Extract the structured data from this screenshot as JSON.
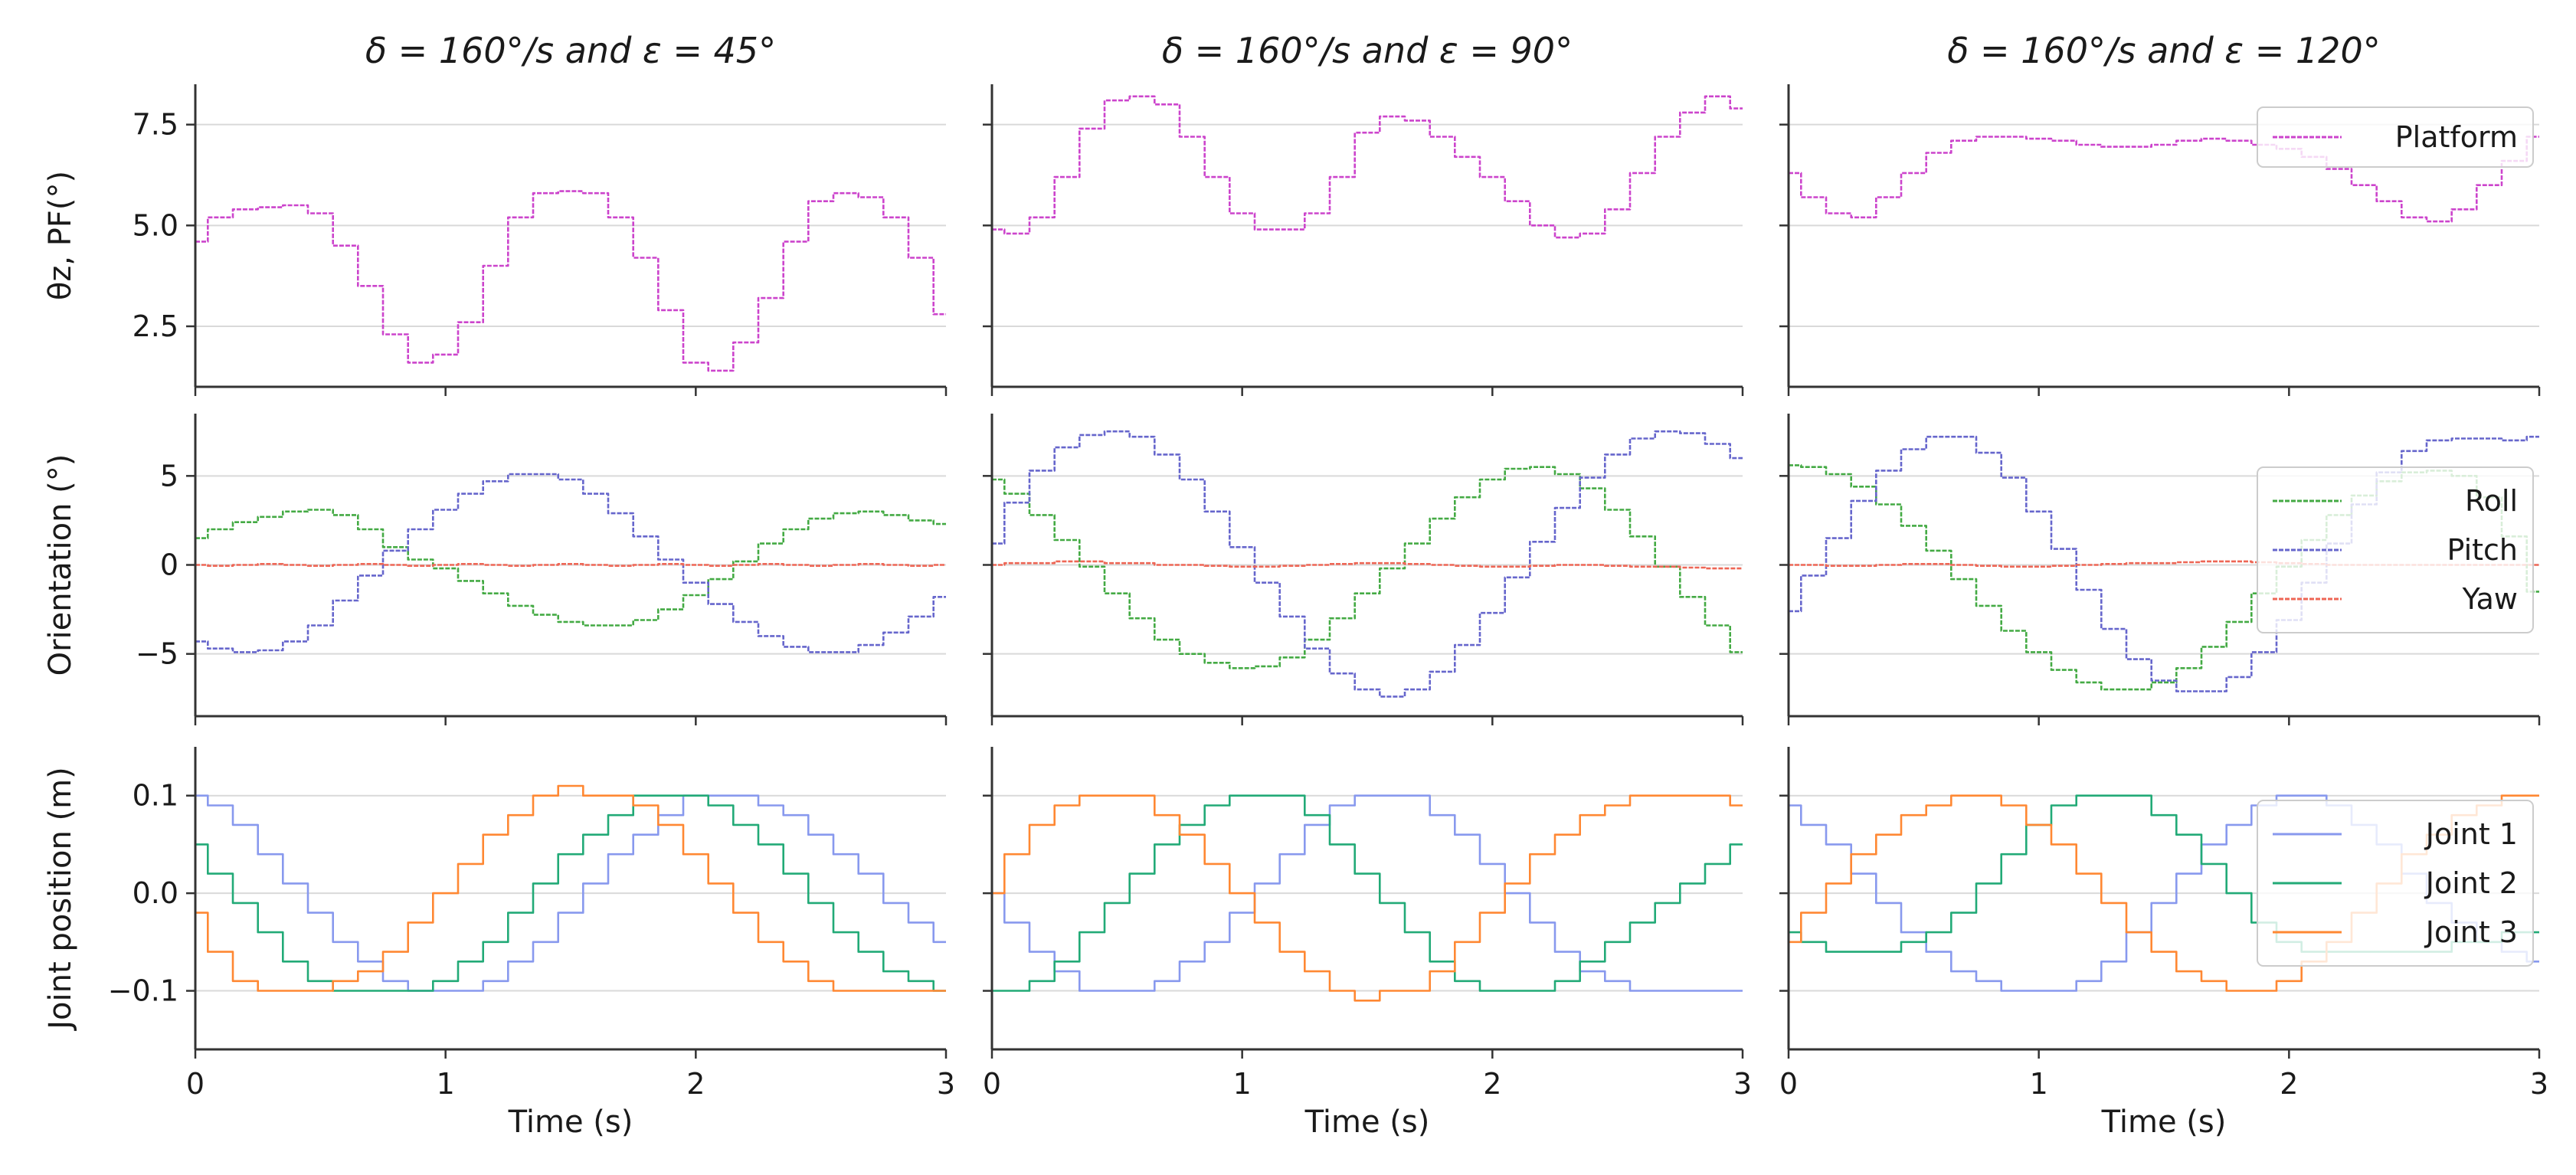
{
  "chart_data": {
    "type": "line",
    "layout": "3 rows x 3 columns of line plots sharing the time axis",
    "x": [
      0,
      0.1,
      0.2,
      0.3,
      0.4,
      0.5,
      0.6,
      0.7,
      0.8,
      0.9,
      1.0,
      1.1,
      1.2,
      1.3,
      1.4,
      1.5,
      1.6,
      1.7,
      1.8,
      1.9,
      2.0,
      2.1,
      2.2,
      2.3,
      2.4,
      2.5,
      2.6,
      2.7,
      2.8,
      2.9,
      3.0
    ],
    "xlabel": "Time (s)",
    "xlim": [
      0,
      3
    ],
    "xticks": [
      0,
      1,
      2,
      3
    ],
    "column_titles": [
      "δ = 160°/s and ε = 45°",
      "δ = 160°/s and ε = 90°",
      "δ = 160°/s and ε = 120°"
    ],
    "rows": [
      {
        "name": "platform",
        "ylabel": "θz, PF(°)",
        "ylim": [
          1.0,
          8.5
        ],
        "yticks": [
          2.5,
          5.0,
          7.5
        ],
        "ytick_labels": [
          "2.5",
          "5.0",
          "7.5"
        ],
        "legend": [
          "Platform"
        ],
        "legend_position": "top-right",
        "series_by_column": [
          [
            {
              "name": "Platform",
              "color": "#cc44cc",
              "values": [
                4.6,
                5.2,
                5.4,
                5.45,
                5.5,
                5.3,
                4.5,
                3.5,
                2.3,
                1.6,
                1.8,
                2.6,
                4.0,
                5.2,
                5.8,
                5.85,
                5.8,
                5.2,
                4.2,
                2.9,
                1.6,
                1.4,
                2.1,
                3.2,
                4.6,
                5.6,
                5.8,
                5.7,
                5.2,
                4.2,
                2.8
              ]
            }
          ],
          [
            {
              "name": "Platform",
              "color": "#cc44cc",
              "values": [
                4.9,
                4.8,
                5.2,
                6.2,
                7.4,
                8.1,
                8.2,
                8.0,
                7.2,
                6.2,
                5.3,
                4.9,
                4.9,
                5.3,
                6.2,
                7.3,
                7.7,
                7.6,
                7.2,
                6.7,
                6.2,
                5.6,
                5.0,
                4.7,
                4.8,
                5.4,
                6.3,
                7.2,
                7.8,
                8.2,
                7.9
              ]
            }
          ],
          [
            {
              "name": "Platform",
              "color": "#cc44cc",
              "values": [
                6.3,
                5.7,
                5.3,
                5.2,
                5.7,
                6.3,
                6.8,
                7.1,
                7.2,
                7.2,
                7.15,
                7.1,
                7.0,
                6.95,
                6.95,
                7.0,
                7.1,
                7.15,
                7.1,
                7.0,
                6.9,
                6.7,
                6.4,
                6.0,
                5.6,
                5.2,
                5.1,
                5.4,
                6.0,
                6.6,
                7.2
              ]
            }
          ]
        ]
      },
      {
        "name": "orientation",
        "ylabel": "Orientation (°)",
        "ylim": [
          -8.5,
          8.5
        ],
        "yticks": [
          -5,
          0,
          5
        ],
        "ytick_labels": [
          "−5",
          "0",
          "5"
        ],
        "legend": [
          "Roll",
          "Pitch",
          "Yaw"
        ],
        "legend_position": "right",
        "series_by_column": [
          [
            {
              "name": "Roll",
              "color": "#44aa44",
              "values": [
                1.5,
                2.0,
                2.4,
                2.7,
                3.0,
                3.1,
                2.8,
                2.0,
                1.0,
                0.3,
                -0.2,
                -0.9,
                -1.6,
                -2.3,
                -2.8,
                -3.2,
                -3.4,
                -3.4,
                -3.1,
                -2.5,
                -1.7,
                -0.8,
                0.2,
                1.2,
                2.0,
                2.6,
                2.9,
                3.0,
                2.8,
                2.5,
                2.3
              ]
            },
            {
              "name": "Pitch",
              "color": "#6666cc",
              "values": [
                -4.3,
                -4.7,
                -4.9,
                -4.8,
                -4.3,
                -3.4,
                -2.0,
                -0.6,
                0.8,
                2.0,
                3.1,
                4.0,
                4.7,
                5.1,
                5.1,
                4.8,
                4.0,
                2.9,
                1.6,
                0.3,
                -1.0,
                -2.2,
                -3.2,
                -4.0,
                -4.6,
                -4.9,
                -4.9,
                -4.5,
                -3.8,
                -2.9,
                -1.8
              ]
            },
            {
              "name": "Yaw",
              "color": "#ee6655",
              "values": [
                0,
                -0.05,
                0,
                0.05,
                0,
                -0.05,
                0,
                0.05,
                0,
                -0.05,
                0,
                0.05,
                0,
                -0.05,
                0,
                0.05,
                0,
                -0.05,
                0,
                0.05,
                0,
                -0.05,
                0,
                0.05,
                0,
                -0.05,
                0,
                0.05,
                0,
                -0.05,
                0
              ]
            }
          ],
          [
            {
              "name": "Roll",
              "color": "#44aa44",
              "values": [
                4.8,
                4.0,
                2.8,
                1.4,
                -0.1,
                -1.6,
                -3.0,
                -4.2,
                -5.0,
                -5.5,
                -5.8,
                -5.7,
                -5.2,
                -4.2,
                -3.0,
                -1.6,
                -0.2,
                1.2,
                2.6,
                3.8,
                4.8,
                5.4,
                5.5,
                5.1,
                4.3,
                3.1,
                1.6,
                -0.1,
                -1.8,
                -3.4,
                -4.9
              ]
            },
            {
              "name": "Pitch",
              "color": "#6666cc",
              "values": [
                1.2,
                3.5,
                5.3,
                6.6,
                7.3,
                7.5,
                7.2,
                6.2,
                4.8,
                3.0,
                1.0,
                -1.0,
                -2.9,
                -4.7,
                -6.1,
                -7.0,
                -7.4,
                -7.0,
                -6.0,
                -4.5,
                -2.7,
                -0.7,
                1.3,
                3.2,
                4.9,
                6.2,
                7.1,
                7.5,
                7.4,
                6.8,
                6.0
              ]
            },
            {
              "name": "Yaw",
              "color": "#ee6655",
              "values": [
                0,
                0.1,
                0.1,
                0.2,
                0.2,
                0.1,
                0.1,
                0,
                0,
                -0.05,
                -0.1,
                -0.1,
                -0.05,
                0,
                0.05,
                0.1,
                0.1,
                0.05,
                0,
                -0.05,
                -0.1,
                -0.1,
                -0.05,
                0,
                0,
                -0.05,
                -0.1,
                -0.1,
                -0.15,
                -0.2,
                -0.2
              ]
            }
          ],
          [
            {
              "name": "Roll",
              "color": "#44aa44",
              "values": [
                5.6,
                5.5,
                5.1,
                4.4,
                3.4,
                2.2,
                0.8,
                -0.8,
                -2.3,
                -3.7,
                -4.9,
                -5.9,
                -6.6,
                -7.0,
                -7.0,
                -6.6,
                -5.8,
                -4.6,
                -3.2,
                -1.6,
                -0.1,
                1.4,
                2.8,
                3.9,
                4.7,
                5.2,
                5.3,
                5.0,
                3.8,
                1.6,
                -1.5
              ]
            },
            {
              "name": "Pitch",
              "color": "#6666cc",
              "values": [
                -2.6,
                -0.6,
                1.5,
                3.6,
                5.3,
                6.5,
                7.2,
                7.2,
                6.3,
                4.9,
                3.0,
                0.9,
                -1.4,
                -3.6,
                -5.3,
                -6.5,
                -7.1,
                -7.1,
                -6.3,
                -4.9,
                -3.1,
                -1.0,
                1.2,
                3.4,
                5.2,
                6.4,
                7.0,
                7.1,
                7.1,
                7.0,
                7.2
              ]
            },
            {
              "name": "Yaw",
              "color": "#ee6655",
              "values": [
                0,
                0,
                -0.05,
                -0.05,
                0,
                0.05,
                0.05,
                0,
                -0.05,
                -0.1,
                -0.1,
                -0.05,
                0,
                0.05,
                0.1,
                0.1,
                0.15,
                0.2,
                0.2,
                0.15,
                0.1,
                0.05,
                0,
                0,
                0,
                0,
                0,
                0,
                0,
                0,
                0
              ]
            }
          ]
        ]
      },
      {
        "name": "joint",
        "ylabel": "Joint position (m)",
        "ylim": [
          -0.16,
          0.15
        ],
        "yticks": [
          -0.1,
          0.0,
          0.1
        ],
        "ytick_labels": [
          "−0.1",
          "0.0",
          "0.1"
        ],
        "legend": [
          "Joint 1",
          "Joint 2",
          "Joint 3"
        ],
        "legend_position": "right",
        "series_by_column": [
          [
            {
              "name": "Joint 1",
              "color": "#8899ee",
              "values": [
                0.1,
                0.09,
                0.07,
                0.04,
                0.01,
                -0.02,
                -0.05,
                -0.07,
                -0.09,
                -0.1,
                -0.1,
                -0.1,
                -0.09,
                -0.07,
                -0.05,
                -0.02,
                0.01,
                0.04,
                0.06,
                0.08,
                0.1,
                0.1,
                0.1,
                0.09,
                0.08,
                0.06,
                0.04,
                0.02,
                -0.01,
                -0.03,
                -0.05
              ]
            },
            {
              "name": "Joint 2",
              "color": "#22aa77",
              "values": [
                0.05,
                0.02,
                -0.01,
                -0.04,
                -0.07,
                -0.09,
                -0.1,
                -0.1,
                -0.1,
                -0.1,
                -0.09,
                -0.07,
                -0.05,
                -0.02,
                0.01,
                0.04,
                0.06,
                0.08,
                0.1,
                0.1,
                0.1,
                0.09,
                0.07,
                0.05,
                0.02,
                -0.01,
                -0.04,
                -0.06,
                -0.08,
                -0.09,
                -0.1
              ]
            },
            {
              "name": "Joint 3",
              "color": "#ff8833",
              "values": [
                -0.02,
                -0.06,
                -0.09,
                -0.1,
                -0.1,
                -0.1,
                -0.09,
                -0.08,
                -0.06,
                -0.03,
                0.0,
                0.03,
                0.06,
                0.08,
                0.1,
                0.11,
                0.1,
                0.1,
                0.09,
                0.07,
                0.04,
                0.01,
                -0.02,
                -0.05,
                -0.07,
                -0.09,
                -0.1,
                -0.1,
                -0.1,
                -0.1,
                -0.1
              ]
            }
          ],
          [
            {
              "name": "Joint 1",
              "color": "#8899ee",
              "values": [
                0.0,
                -0.03,
                -0.06,
                -0.08,
                -0.1,
                -0.1,
                -0.1,
                -0.09,
                -0.07,
                -0.05,
                -0.02,
                0.01,
                0.04,
                0.07,
                0.09,
                0.1,
                0.1,
                0.1,
                0.08,
                0.06,
                0.03,
                0.0,
                -0.03,
                -0.06,
                -0.08,
                -0.09,
                -0.1,
                -0.1,
                -0.1,
                -0.1,
                -0.1
              ]
            },
            {
              "name": "Joint 2",
              "color": "#22aa77",
              "values": [
                -0.1,
                -0.1,
                -0.09,
                -0.07,
                -0.04,
                -0.01,
                0.02,
                0.05,
                0.07,
                0.09,
                0.1,
                0.1,
                0.1,
                0.08,
                0.05,
                0.02,
                -0.01,
                -0.04,
                -0.07,
                -0.09,
                -0.1,
                -0.1,
                -0.1,
                -0.09,
                -0.07,
                -0.05,
                -0.03,
                -0.01,
                0.01,
                0.03,
                0.05
              ]
            },
            {
              "name": "Joint 3",
              "color": "#ff8833",
              "values": [
                0.0,
                0.04,
                0.07,
                0.09,
                0.1,
                0.1,
                0.1,
                0.08,
                0.06,
                0.03,
                0.0,
                -0.03,
                -0.06,
                -0.08,
                -0.1,
                -0.11,
                -0.1,
                -0.1,
                -0.08,
                -0.05,
                -0.02,
                0.01,
                0.04,
                0.06,
                0.08,
                0.09,
                0.1,
                0.1,
                0.1,
                0.1,
                0.09
              ]
            }
          ],
          [
            {
              "name": "Joint 1",
              "color": "#8899ee",
              "values": [
                0.09,
                0.07,
                0.05,
                0.02,
                -0.01,
                -0.04,
                -0.06,
                -0.08,
                -0.09,
                -0.1,
                -0.1,
                -0.1,
                -0.09,
                -0.07,
                -0.04,
                -0.01,
                0.02,
                0.05,
                0.07,
                0.09,
                0.1,
                0.1,
                0.09,
                0.07,
                0.05,
                0.02,
                -0.01,
                -0.03,
                -0.05,
                -0.06,
                -0.07
              ]
            },
            {
              "name": "Joint 2",
              "color": "#22aa77",
              "values": [
                -0.04,
                -0.05,
                -0.06,
                -0.06,
                -0.06,
                -0.05,
                -0.04,
                -0.02,
                0.01,
                0.04,
                0.07,
                0.09,
                0.1,
                0.1,
                0.1,
                0.08,
                0.06,
                0.03,
                0.0,
                -0.03,
                -0.05,
                -0.06,
                -0.06,
                -0.06,
                -0.06,
                -0.06,
                -0.06,
                -0.05,
                -0.05,
                -0.04,
                -0.04
              ]
            },
            {
              "name": "Joint 3",
              "color": "#ff8833",
              "values": [
                -0.05,
                -0.02,
                0.01,
                0.04,
                0.06,
                0.08,
                0.09,
                0.1,
                0.1,
                0.09,
                0.07,
                0.05,
                0.02,
                -0.01,
                -0.04,
                -0.06,
                -0.08,
                -0.09,
                -0.1,
                -0.1,
                -0.09,
                -0.07,
                -0.05,
                -0.02,
                0.01,
                0.04,
                0.06,
                0.08,
                0.09,
                0.1,
                0.1
              ]
            }
          ]
        ]
      }
    ]
  }
}
